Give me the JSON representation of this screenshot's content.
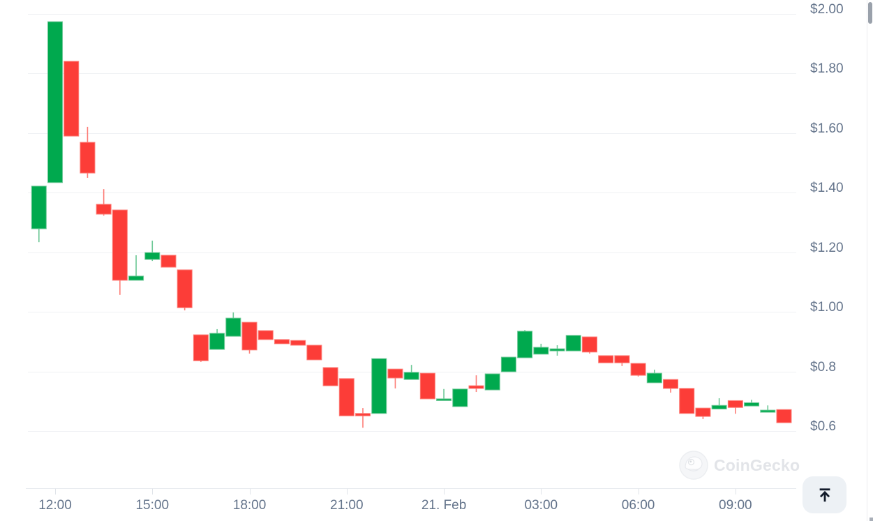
{
  "watermark": {
    "text": "CoinGecko",
    "logo": "coingecko-gecko-icon"
  },
  "scroll_top_button": {
    "icon": "arrow-up-to-bar"
  },
  "colors": {
    "up": "#00a94e",
    "up_edge": "#6cc795",
    "down": "#fc3d38",
    "down_edge": "#fd7d77",
    "grid": "#eff1f4",
    "axis_line": "#e7eaee",
    "tick": "#dfe3e8",
    "label": "#64748b",
    "watermark_text": "#e2e4e8",
    "button_bg": "#edf1f5",
    "button_icon": "#131c2b",
    "scrollbar": "#9aa1ab"
  },
  "chart_data": {
    "type": "candlestick",
    "title": "",
    "xlabel": "",
    "ylabel": "",
    "grid": true,
    "legend": false,
    "currency": "USD",
    "y_axis": {
      "tick_labels": [
        "$2.00",
        "$1.80",
        "$1.60",
        "$1.40",
        "$1.20",
        "$1.00",
        "$0.8",
        "$0.6"
      ],
      "tick_values": [
        2.0,
        1.8,
        1.6,
        1.4,
        1.2,
        1.0,
        0.8,
        0.6
      ],
      "range": [
        0.56,
        2.05
      ],
      "position": "right"
    },
    "x_axis": {
      "tick_labels": [
        "12:00",
        "15:00",
        "18:00",
        "21:00",
        "21. Feb",
        "03:00",
        "06:00",
        "09:00"
      ],
      "tick_candle_indices": [
        1,
        7,
        13,
        19,
        25,
        31,
        37,
        43
      ]
    },
    "candles_ohlc": [
      [
        1.279,
        1.422,
        1.234,
        1.422
      ],
      [
        1.434,
        1.974,
        1.434,
        1.974
      ],
      [
        1.841,
        1.841,
        1.59,
        1.59
      ],
      [
        1.569,
        1.621,
        1.45,
        1.466
      ],
      [
        1.361,
        1.412,
        1.323,
        1.328
      ],
      [
        1.342,
        1.342,
        1.057,
        1.106
      ],
      [
        1.106,
        1.19,
        1.106,
        1.12
      ],
      [
        1.176,
        1.239,
        1.171,
        1.199
      ],
      [
        1.19,
        1.19,
        1.15,
        1.15
      ],
      [
        1.141,
        1.141,
        1.005,
        1.014
      ],
      [
        0.923,
        0.923,
        0.832,
        0.836
      ],
      [
        0.874,
        0.942,
        0.874,
        0.928
      ],
      [
        0.918,
        0.998,
        0.918,
        0.979
      ],
      [
        0.965,
        0.965,
        0.86,
        0.872
      ],
      [
        0.937,
        0.937,
        0.907,
        0.907
      ],
      [
        0.907,
        0.907,
        0.893,
        0.893
      ],
      [
        0.904,
        0.904,
        0.888,
        0.888
      ],
      [
        0.888,
        0.888,
        0.839,
        0.839
      ],
      [
        0.813,
        0.813,
        0.752,
        0.752
      ],
      [
        0.776,
        0.776,
        0.651,
        0.651
      ],
      [
        0.659,
        0.677,
        0.611,
        0.651
      ],
      [
        0.659,
        0.843,
        0.659,
        0.843
      ],
      [
        0.808,
        0.808,
        0.743,
        0.778
      ],
      [
        0.773,
        0.822,
        0.773,
        0.797
      ],
      [
        0.794,
        0.794,
        0.708,
        0.708
      ],
      [
        0.703,
        0.741,
        0.703,
        0.708
      ],
      [
        0.682,
        0.741,
        0.682,
        0.741
      ],
      [
        0.752,
        0.787,
        0.731,
        0.743
      ],
      [
        0.738,
        0.792,
        0.738,
        0.792
      ],
      [
        0.799,
        0.848,
        0.799,
        0.848
      ],
      [
        0.846,
        0.939,
        0.846,
        0.935
      ],
      [
        0.858,
        0.893,
        0.858,
        0.881
      ],
      [
        0.869,
        0.888,
        0.853,
        0.876
      ],
      [
        0.869,
        0.921,
        0.869,
        0.921
      ],
      [
        0.916,
        0.916,
        0.86,
        0.865
      ],
      [
        0.853,
        0.853,
        0.829,
        0.829
      ],
      [
        0.853,
        0.853,
        0.818,
        0.829
      ],
      [
        0.827,
        0.827,
        0.783,
        0.787
      ],
      [
        0.762,
        0.806,
        0.762,
        0.794
      ],
      [
        0.773,
        0.773,
        0.729,
        0.743
      ],
      [
        0.743,
        0.743,
        0.659,
        0.659
      ],
      [
        0.677,
        0.677,
        0.64,
        0.649
      ],
      [
        0.674,
        0.71,
        0.674,
        0.686
      ],
      [
        0.702,
        0.702,
        0.658,
        0.679
      ],
      [
        0.684,
        0.705,
        0.684,
        0.695
      ],
      [
        0.663,
        0.686,
        0.663,
        0.67
      ],
      [
        0.672,
        0.672,
        0.628,
        0.628
      ]
    ]
  }
}
